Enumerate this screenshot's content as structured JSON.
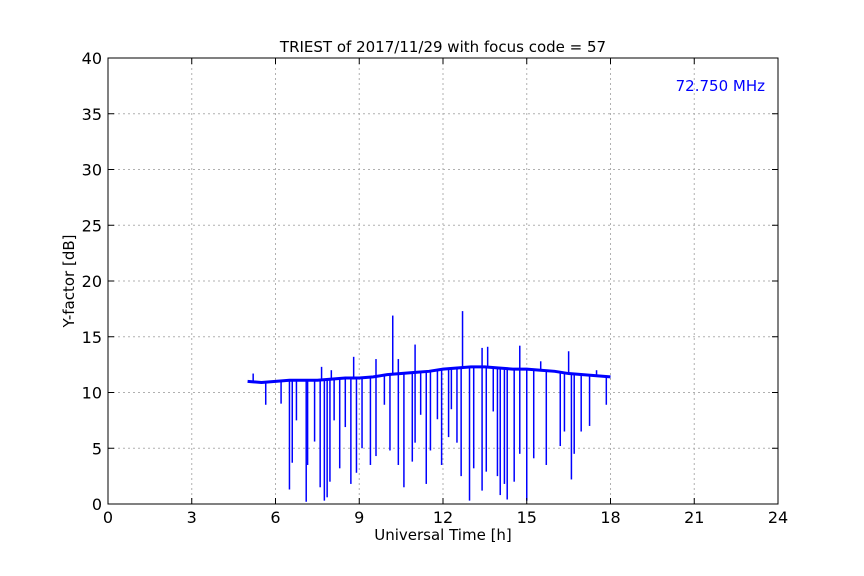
{
  "chart_data": {
    "type": "line",
    "title": "TRIEST of 2017/11/29 with focus code = 57",
    "xlabel": "Universal Time [h]",
    "ylabel": "Y-factor [dB]",
    "xlim": [
      0,
      24
    ],
    "ylim": [
      0,
      40
    ],
    "xticks": [
      0,
      3,
      6,
      9,
      12,
      15,
      18,
      21,
      24
    ],
    "yticks": [
      0,
      5,
      10,
      15,
      20,
      25,
      30,
      35,
      40
    ],
    "grid": true,
    "annotation": {
      "text": "72.750 MHz",
      "color": "#0000ff",
      "placement": "top-right"
    },
    "series": [
      {
        "color": "#0000ff",
        "x": [
          5.0,
          5.5,
          6.0,
          6.5,
          7.0,
          7.5,
          8.0,
          8.5,
          9.0,
          9.5,
          10.0,
          10.5,
          11.0,
          11.5,
          12.0,
          12.5,
          13.0,
          13.5,
          14.0,
          14.5,
          15.0,
          15.5,
          16.0,
          16.5,
          17.0,
          17.5,
          18.0
        ],
        "y": [
          11.0,
          10.9,
          11.0,
          11.1,
          11.1,
          11.1,
          11.2,
          11.3,
          11.3,
          11.4,
          11.6,
          11.7,
          11.8,
          11.9,
          12.1,
          12.2,
          12.3,
          12.3,
          12.2,
          12.1,
          12.1,
          12.0,
          11.9,
          11.7,
          11.6,
          11.5,
          11.4
        ],
        "spikes_down": [
          [
            5.65,
            8.9
          ],
          [
            6.2,
            9.0
          ],
          [
            6.5,
            1.3
          ],
          [
            6.6,
            3.7
          ],
          [
            6.75,
            7.5
          ],
          [
            7.1,
            0.2
          ],
          [
            7.15,
            3.5
          ],
          [
            7.4,
            5.6
          ],
          [
            7.6,
            1.5
          ],
          [
            7.75,
            0.3
          ],
          [
            7.85,
            0.6
          ],
          [
            7.95,
            2.0
          ],
          [
            8.1,
            7.5
          ],
          [
            8.3,
            3.2
          ],
          [
            8.5,
            6.9
          ],
          [
            8.7,
            1.8
          ],
          [
            8.9,
            2.8
          ],
          [
            9.1,
            5.0
          ],
          [
            9.4,
            3.5
          ],
          [
            9.6,
            4.3
          ],
          [
            9.9,
            8.9
          ],
          [
            10.1,
            4.8
          ],
          [
            10.4,
            3.5
          ],
          [
            10.6,
            1.5
          ],
          [
            10.9,
            3.8
          ],
          [
            11.0,
            5.5
          ],
          [
            11.2,
            8.0
          ],
          [
            11.4,
            1.8
          ],
          [
            11.55,
            4.8
          ],
          [
            11.8,
            7.6
          ],
          [
            11.95,
            3.5
          ],
          [
            12.2,
            6.0
          ],
          [
            12.3,
            8.5
          ],
          [
            12.5,
            5.5
          ],
          [
            12.65,
            2.5
          ],
          [
            12.95,
            0.3
          ],
          [
            13.1,
            3.2
          ],
          [
            13.4,
            1.2
          ],
          [
            13.55,
            2.9
          ],
          [
            13.8,
            8.3
          ],
          [
            13.95,
            2.5
          ],
          [
            14.05,
            0.8
          ],
          [
            14.2,
            1.8
          ],
          [
            14.3,
            0.4
          ],
          [
            14.55,
            2.0
          ],
          [
            14.75,
            4.5
          ],
          [
            15.0,
            0.3
          ],
          [
            15.25,
            4.1
          ],
          [
            15.7,
            3.5
          ],
          [
            16.2,
            5.2
          ],
          [
            16.35,
            6.5
          ],
          [
            16.6,
            2.2
          ],
          [
            16.7,
            4.5
          ],
          [
            16.95,
            6.5
          ],
          [
            17.25,
            7.0
          ],
          [
            17.85,
            8.9
          ]
        ],
        "spikes_up": [
          [
            5.2,
            11.7
          ],
          [
            7.65,
            12.3
          ],
          [
            8.0,
            12.0
          ],
          [
            8.8,
            13.2
          ],
          [
            9.6,
            13.0
          ],
          [
            10.2,
            16.9
          ],
          [
            10.4,
            13.0
          ],
          [
            11.0,
            14.3
          ],
          [
            12.7,
            17.3
          ],
          [
            13.4,
            14.0
          ],
          [
            13.6,
            14.1
          ],
          [
            14.75,
            14.2
          ],
          [
            15.5,
            12.8
          ],
          [
            16.5,
            13.7
          ],
          [
            17.5,
            12.0
          ]
        ]
      }
    ]
  }
}
